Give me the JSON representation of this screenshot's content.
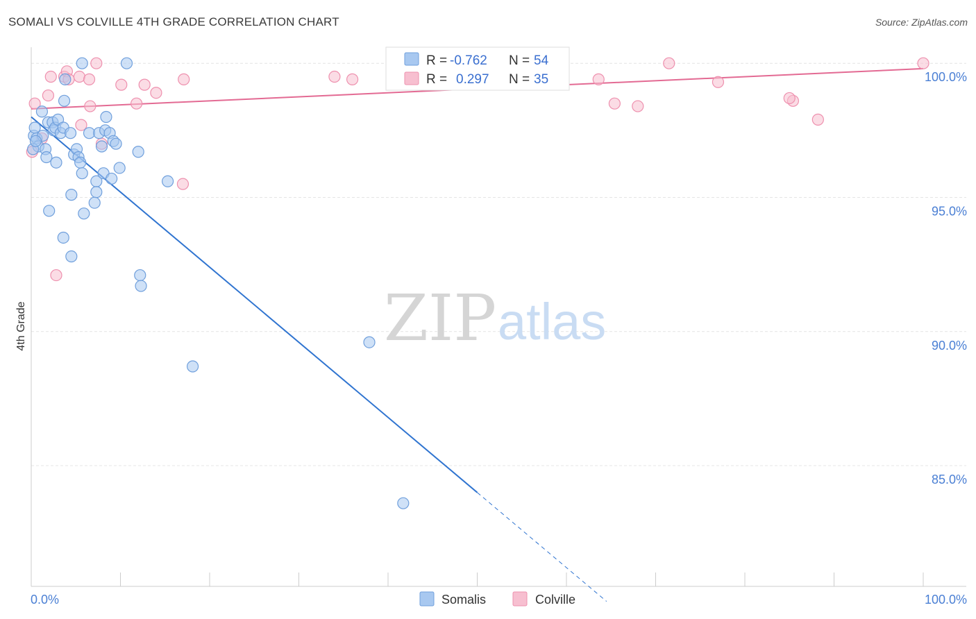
{
  "header": {
    "title": "SOMALI VS COLVILLE 4TH GRADE CORRELATION CHART",
    "source": "Source: ZipAtlas.com"
  },
  "watermark": {
    "zip": "ZIP",
    "atlas": "atlas"
  },
  "legend_box": {
    "rows": [
      {
        "r_label": "R =",
        "r_value": "-0.762",
        "n_label": "N =",
        "n_value": "54",
        "color": "#8fb8ec"
      },
      {
        "r_label": "R =",
        "r_value": "0.297",
        "n_label": "N =",
        "n_value": "35",
        "color": "#f5a9c0"
      }
    ]
  },
  "bottom_legend": [
    {
      "label": "Somalis",
      "color": "#8fb8ec"
    },
    {
      "label": "Colville",
      "color": "#f5a9c0"
    }
  ],
  "colors": {
    "somalis_fill": "#a8c8f0",
    "somalis_stroke": "#6f9fdc",
    "somalis_line": "#2f74d0",
    "colville_fill": "#f7bfd0",
    "colville_stroke": "#ee90ae",
    "colville_line": "#e36a93",
    "grid": "#e4e4e4",
    "tick_label": "#4a7fd4"
  },
  "chart_data": {
    "type": "scatter",
    "ylabel": "4th Grade",
    "xlim": [
      0,
      100
    ],
    "ylim": [
      80.5,
      100.6
    ],
    "x_tick_labels": [
      "0.0%",
      "100.0%"
    ],
    "y_ticks": [
      85,
      90,
      95,
      100
    ],
    "y_tick_labels": [
      "85.0%",
      "90.0%",
      "95.0%",
      "100.0%"
    ],
    "grid": true,
    "legend_position": "top-center",
    "series": [
      {
        "name": "Somalis",
        "trend": {
          "x0": 0,
          "y0": 98.0,
          "x1": 50,
          "y1": 84.0,
          "dash_to_x": 64.5
        },
        "points": [
          [
            0.3,
            97.3
          ],
          [
            0.4,
            97.6
          ],
          [
            0.6,
            97.2
          ],
          [
            0.8,
            96.9
          ],
          [
            1.2,
            98.2
          ],
          [
            1.3,
            97.3
          ],
          [
            1.6,
            96.8
          ],
          [
            1.7,
            96.5
          ],
          [
            1.9,
            97.8
          ],
          [
            2.0,
            94.5
          ],
          [
            2.4,
            97.8
          ],
          [
            2.5,
            97.5
          ],
          [
            2.7,
            97.6
          ],
          [
            2.8,
            96.3
          ],
          [
            3.0,
            97.9
          ],
          [
            3.3,
            97.4
          ],
          [
            3.6,
            97.6
          ],
          [
            3.6,
            93.5
          ],
          [
            3.7,
            98.6
          ],
          [
            3.8,
            99.4
          ],
          [
            4.4,
            97.4
          ],
          [
            4.5,
            95.1
          ],
          [
            4.5,
            92.8
          ],
          [
            4.8,
            96.6
          ],
          [
            5.1,
            96.8
          ],
          [
            5.3,
            96.5
          ],
          [
            5.5,
            96.3
          ],
          [
            5.7,
            95.9
          ],
          [
            5.7,
            100.0
          ],
          [
            5.9,
            94.4
          ],
          [
            6.5,
            97.4
          ],
          [
            7.3,
            95.6
          ],
          [
            7.3,
            95.2
          ],
          [
            7.1,
            94.8
          ],
          [
            7.6,
            97.4
          ],
          [
            7.9,
            96.9
          ],
          [
            8.1,
            95.9
          ],
          [
            8.3,
            97.5
          ],
          [
            8.4,
            98.0
          ],
          [
            8.8,
            97.4
          ],
          [
            9.0,
            95.7
          ],
          [
            9.2,
            97.1
          ],
          [
            9.5,
            97.0
          ],
          [
            9.9,
            96.1
          ],
          [
            10.7,
            100.0
          ],
          [
            12.0,
            96.7
          ],
          [
            12.2,
            92.1
          ],
          [
            12.3,
            91.7
          ],
          [
            15.3,
            95.6
          ],
          [
            18.1,
            88.7
          ],
          [
            37.9,
            89.6
          ],
          [
            41.7,
            83.6
          ],
          [
            0.2,
            96.8
          ],
          [
            0.5,
            97.1
          ]
        ]
      },
      {
        "name": "Colville",
        "trend": {
          "x0": 0,
          "y0": 98.3,
          "x1": 100,
          "y1": 99.8
        },
        "points": [
          [
            0.4,
            98.5
          ],
          [
            1.2,
            97.2
          ],
          [
            1.9,
            98.8
          ],
          [
            2.2,
            99.5
          ],
          [
            2.8,
            92.1
          ],
          [
            3.7,
            99.5
          ],
          [
            4.0,
            99.7
          ],
          [
            4.2,
            99.4
          ],
          [
            5.4,
            99.5
          ],
          [
            5.6,
            97.7
          ],
          [
            6.5,
            99.4
          ],
          [
            6.6,
            98.4
          ],
          [
            7.3,
            100.0
          ],
          [
            7.9,
            97.0
          ],
          [
            10.1,
            99.2
          ],
          [
            11.8,
            98.5
          ],
          [
            14.0,
            98.9
          ],
          [
            17.0,
            95.5
          ],
          [
            17.1,
            99.4
          ],
          [
            34.0,
            99.5
          ],
          [
            36.0,
            99.4
          ],
          [
            40.8,
            100.0
          ],
          [
            47.1,
            99.3
          ],
          [
            53.8,
            100.0
          ],
          [
            63.6,
            99.4
          ],
          [
            65.4,
            98.5
          ],
          [
            68.0,
            98.4
          ],
          [
            71.5,
            100.0
          ],
          [
            77.0,
            99.3
          ],
          [
            85.4,
            98.6
          ],
          [
            85.0,
            98.7
          ],
          [
            88.2,
            97.9
          ],
          [
            100.0,
            100.0
          ],
          [
            0.1,
            96.7
          ],
          [
            12.7,
            99.2
          ]
        ]
      }
    ]
  }
}
